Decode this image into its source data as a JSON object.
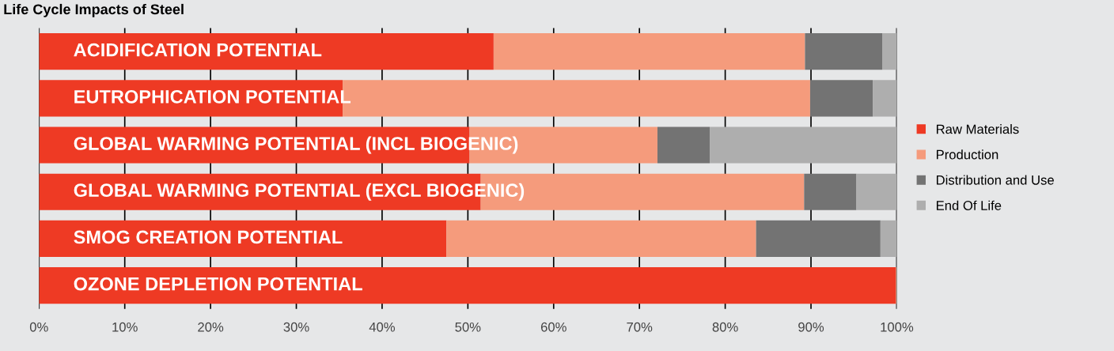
{
  "chart_data": {
    "type": "bar",
    "orientation": "horizontal",
    "stacked": true,
    "title": "Life Cycle Impacts of Steel",
    "categories": [
      "ACIDIFICATION POTENTIAL",
      "EUTROPHICATION POTENTIAL",
      "GLOBAL WARMING POTENTIAL (INCL BIOGENIC)",
      "GLOBAL WARMING POTENTIAL (EXCL BIOGENIC)",
      "SMOG CREATION POTENTIAL",
      "OZONE DEPLETION POTENTIAL"
    ],
    "series": [
      {
        "name": "Raw Materials",
        "color": "#ee3a24",
        "values": [
          53.0,
          35.4,
          50.2,
          51.5,
          47.5,
          99.9
        ]
      },
      {
        "name": "Production",
        "color": "#f59b7c",
        "values": [
          36.3,
          54.5,
          21.9,
          37.7,
          36.1,
          0.1
        ]
      },
      {
        "name": "Distribution and Use",
        "color": "#737373",
        "values": [
          9.0,
          7.3,
          6.1,
          6.1,
          14.5,
          0
        ]
      },
      {
        "name": "End Of Life",
        "color": "#aeaeae",
        "values": [
          1.7,
          2.8,
          21.8,
          4.7,
          1.9,
          0
        ]
      }
    ],
    "xlim": [
      0,
      100
    ],
    "xticks": [
      {
        "value": 0,
        "label": "0%"
      },
      {
        "value": 10,
        "label": "10%"
      },
      {
        "value": 20,
        "label": "20%"
      },
      {
        "value": 30,
        "label": "30%"
      },
      {
        "value": 40,
        "label": "40%"
      },
      {
        "value": 50,
        "label": "50%"
      },
      {
        "value": 60,
        "label": "60%"
      },
      {
        "value": 70,
        "label": "70%"
      },
      {
        "value": 80,
        "label": "80%"
      },
      {
        "value": 90,
        "label": "90%"
      },
      {
        "value": 100,
        "label": "100%"
      }
    ],
    "grid": "x",
    "legend": "right"
  }
}
